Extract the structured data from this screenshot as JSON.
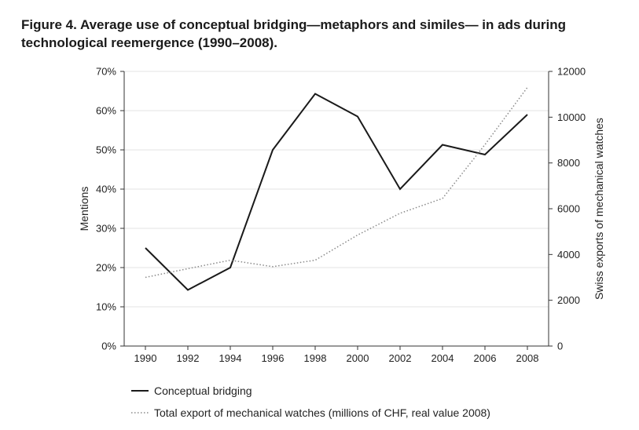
{
  "figure": {
    "title": "Figure 4.  Average use of conceptual bridging—metaphors and similes— in ads during technological reemergence (1990–2008)."
  },
  "chart_data": {
    "type": "line",
    "x": [
      1990,
      1992,
      1994,
      1996,
      1998,
      2000,
      2002,
      2004,
      2006,
      2008
    ],
    "x_tick_labels": [
      "1990",
      "1992",
      "1994",
      "1996",
      "1998",
      "2000",
      "2002",
      "2004",
      "2006",
      "2008"
    ],
    "series": [
      {
        "name": "Conceptual bridging",
        "axis": "left",
        "style": "solid",
        "color": "#1a1a1a",
        "values": [
          25,
          14.3,
          20,
          50,
          64.3,
          58.5,
          40,
          51.3,
          48.8,
          59
        ]
      },
      {
        "name": "Total export of mechanical watches (millions of CHF, real value 2008)",
        "axis": "right",
        "style": "dotted",
        "color": "#8a8a8a",
        "values": [
          3000,
          3380,
          3750,
          3470,
          3750,
          4850,
          5800,
          6450,
          8800,
          11300
        ]
      }
    ],
    "ylabel": "Mentions",
    "ylabel_right": "Swiss exports of mechanical watches",
    "ylim": [
      0,
      70
    ],
    "ylim_right": [
      0,
      12000
    ],
    "y_tick_labels": [
      "0%",
      "10%",
      "20%",
      "30%",
      "40%",
      "50%",
      "60%",
      "70%"
    ],
    "y_tick_values": [
      0,
      10,
      20,
      30,
      40,
      50,
      60,
      70
    ],
    "y_right_tick_labels": [
      "0",
      "2000",
      "4000",
      "6000",
      "8000",
      "10000",
      "12000"
    ],
    "y_right_tick_values": [
      0,
      2000,
      4000,
      6000,
      8000,
      10000,
      12000
    ],
    "xlim": [
      1989,
      2009
    ],
    "grid": true,
    "legend_position": "bottom-left"
  }
}
